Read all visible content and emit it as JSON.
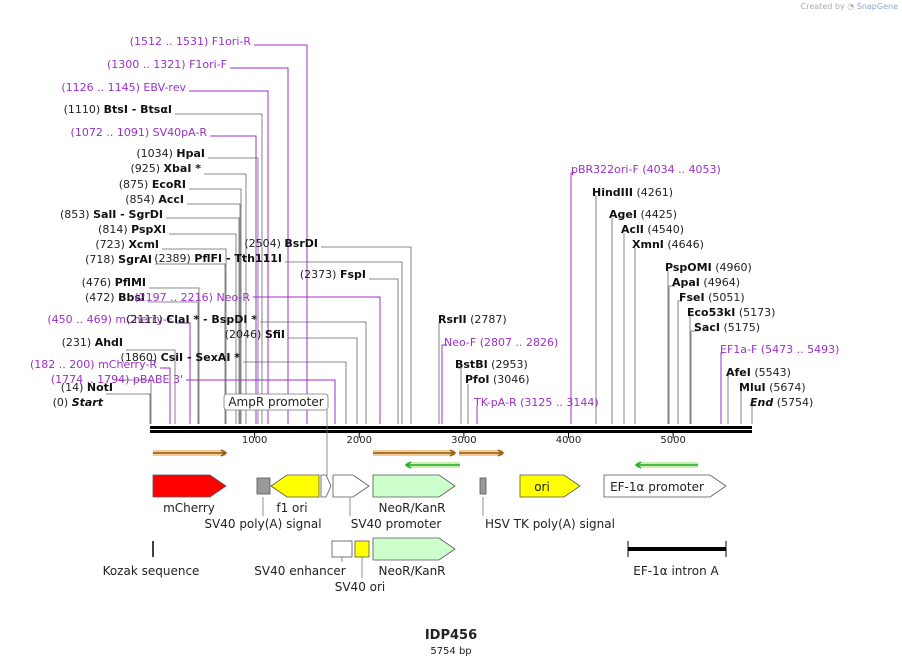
{
  "credit": {
    "prefix": "Created by",
    "brand": "SnapGene"
  },
  "plasmid": {
    "name": "IDP456",
    "length_label": "5754 bp",
    "length": 5754
  },
  "colors": {
    "site_line": "#666666",
    "primer": "#9b30c8",
    "backbone": "#000000",
    "red": "#ff0000",
    "yellow": "#ffff00",
    "green": "#ccffcc",
    "gray": "#999999",
    "white": "#ffffff",
    "orange": "#f0a040",
    "arrow_green": "#22aa22"
  },
  "ticks": [
    {
      "pos": 1000,
      "label": "1000"
    },
    {
      "pos": 2000,
      "label": "2000"
    },
    {
      "pos": 3000,
      "label": "3000"
    },
    {
      "pos": 4000,
      "label": "4000"
    },
    {
      "pos": 5000,
      "label": "5000"
    }
  ],
  "sites": [
    {
      "pos": "(0)",
      "name": "Start",
      "style": "bi"
    },
    {
      "pos": "(14)",
      "name": "NotI",
      "style": "b"
    },
    {
      "pos": "(182 .. 200)",
      "name": "mCherry-R",
      "style": "primer"
    },
    {
      "pos": "(231)",
      "name": "AhdI",
      "style": "b"
    },
    {
      "pos": "(450 .. 469)",
      "name": "mCherry-F",
      "style": "primer"
    },
    {
      "pos": "(472)",
      "name": "BbsI",
      "style": "b"
    },
    {
      "pos": "(476)",
      "name": "PflMI",
      "style": "b"
    },
    {
      "pos": "(718)",
      "name": "SgrAI",
      "style": "b"
    },
    {
      "pos": "(723)",
      "name": "XcmI",
      "style": "b"
    },
    {
      "pos": "(814)",
      "name": "PspXI",
      "style": "b"
    },
    {
      "pos": "(853)",
      "name": "SalI  -  SgrDI",
      "style": "b"
    },
    {
      "pos": "(854)",
      "name": "AccI",
      "style": "b"
    },
    {
      "pos": "(875)",
      "name": "EcoRI",
      "style": "b"
    },
    {
      "pos": "(925)",
      "name": "XbaI *",
      "style": "b"
    },
    {
      "pos": "(1034)",
      "name": "HpaI",
      "style": "b"
    },
    {
      "pos": "(1072 .. 1091)",
      "name": "SV40pA-R",
      "style": "primer"
    },
    {
      "pos": "(1110)",
      "name": "BtsI  -  BtsαI",
      "style": "b"
    },
    {
      "pos": "(1126 .. 1145)",
      "name": "EBV-rev",
      "style": "primer"
    },
    {
      "pos": "(1300 .. 1321)",
      "name": "F1ori-F",
      "style": "primer"
    },
    {
      "pos": "(1512 .. 1531)",
      "name": "F1ori-R",
      "style": "primer"
    },
    {
      "pos": "(1774 .. 1794)",
      "name": "pBABE 3'",
      "style": "primer"
    },
    {
      "pos": "(1860)",
      "name": "CsiI  -  SexAI *",
      "style": "b"
    },
    {
      "pos": "(2046)",
      "name": "SfiI",
      "style": "b"
    },
    {
      "pos": "(2111)",
      "name": "ClaI *  -  BspDI *",
      "style": "b"
    },
    {
      "pos": "(2197 .. 2216)",
      "name": "Neo-R",
      "style": "primer"
    },
    {
      "pos": "(2373)",
      "name": "FspI",
      "style": "b"
    },
    {
      "pos": "(2389)",
      "name": "PflFI  -  Tth111I",
      "style": "b"
    },
    {
      "pos": "(2504)",
      "name": "BsrDI",
      "style": "b"
    },
    {
      "pos": "(2787)",
      "name": "RsrII",
      "style": "b"
    },
    {
      "pos": "(2807 .. 2826)",
      "name": "Neo-F",
      "style": "primer"
    },
    {
      "pos": "(2953)",
      "name": "BstBI",
      "style": "b"
    },
    {
      "pos": "(3046)",
      "name": "PfoI",
      "style": "b"
    },
    {
      "pos": "(3125 .. 3144)",
      "name": "TK-pA-R",
      "style": "primer"
    },
    {
      "pos": "(4034 .. 4053)",
      "name": "pBR322ori-F",
      "style": "primer"
    },
    {
      "pos": "(4261)",
      "name": "HindIII",
      "style": "b"
    },
    {
      "pos": "(4425)",
      "name": "AgeI",
      "style": "b"
    },
    {
      "pos": "(4540)",
      "name": "AclI",
      "style": "b"
    },
    {
      "pos": "(4646)",
      "name": "XmnI",
      "style": "b"
    },
    {
      "pos": "(4960)",
      "name": "PspOMI",
      "style": "b"
    },
    {
      "pos": "(4964)",
      "name": "ApaI",
      "style": "b"
    },
    {
      "pos": "(5051)",
      "name": "FseI",
      "style": "b"
    },
    {
      "pos": "(5173)",
      "name": "Eco53kI",
      "style": "b"
    },
    {
      "pos": "(5175)",
      "name": "SacI",
      "style": "b"
    },
    {
      "pos": "(5473 .. 5493)",
      "name": "EF1a-F",
      "style": "primer"
    },
    {
      "pos": "(5543)",
      "name": "AfeI",
      "style": "b"
    },
    {
      "pos": "(5674)",
      "name": "MluI",
      "style": "b"
    },
    {
      "pos": "(5754)",
      "name": "End",
      "style": "bi"
    }
  ],
  "features": [
    {
      "label": "AmpR promoter"
    },
    {
      "label": "mCherry"
    },
    {
      "label": "f1 ori"
    },
    {
      "label": "SV40 poly(A) signal"
    },
    {
      "label": "SV40 promoter"
    },
    {
      "label": "NeoR/KanR"
    },
    {
      "label": "HSV TK poly(A) signal"
    },
    {
      "label": "ori"
    },
    {
      "label": "EF-1α promoter"
    },
    {
      "label": "Kozak sequence"
    },
    {
      "label": "SV40 enhancer"
    },
    {
      "label": "SV40 ori"
    },
    {
      "label": "NeoR/KanR"
    },
    {
      "label": "EF-1α intron A"
    }
  ]
}
